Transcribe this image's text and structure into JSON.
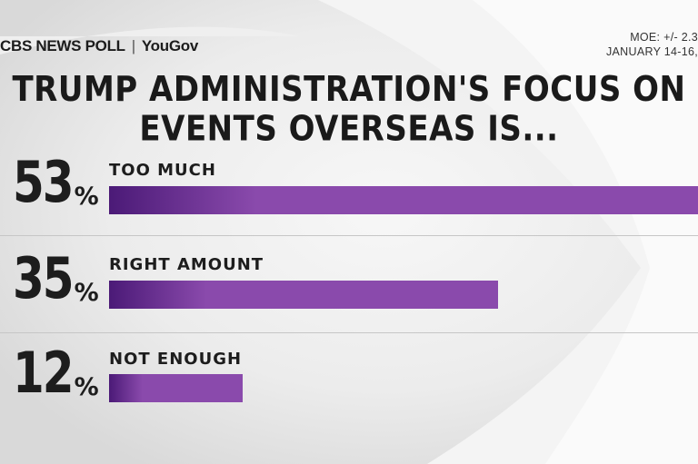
{
  "header": {
    "source_brand": "CBS NEWS POLL",
    "source_partner": "YouGov",
    "moe_text": "MOE: +/- 2.3",
    "dates_text": "JANUARY 14-16,"
  },
  "chart_data": {
    "type": "bar",
    "orientation": "horizontal",
    "title": "TRUMP ADMINISTRATION'S FOCUS ON EVENTS OVERSEAS IS...",
    "title_lines": [
      "TRUMP ADMINISTRATION'S FOCUS ON",
      "EVENTS OVERSEAS IS..."
    ],
    "categories": [
      "TOO MUCH",
      "RIGHT AMOUNT",
      "NOT ENOUGH"
    ],
    "values": [
      53,
      35,
      12
    ],
    "value_labels": [
      "53",
      "35",
      "12"
    ],
    "unit": "%",
    "xlim": [
      0,
      53
    ],
    "grid": false,
    "legend": "none",
    "colors": {
      "bar_start": "#4b1a77",
      "bar_end": "#8a4aac"
    }
  }
}
